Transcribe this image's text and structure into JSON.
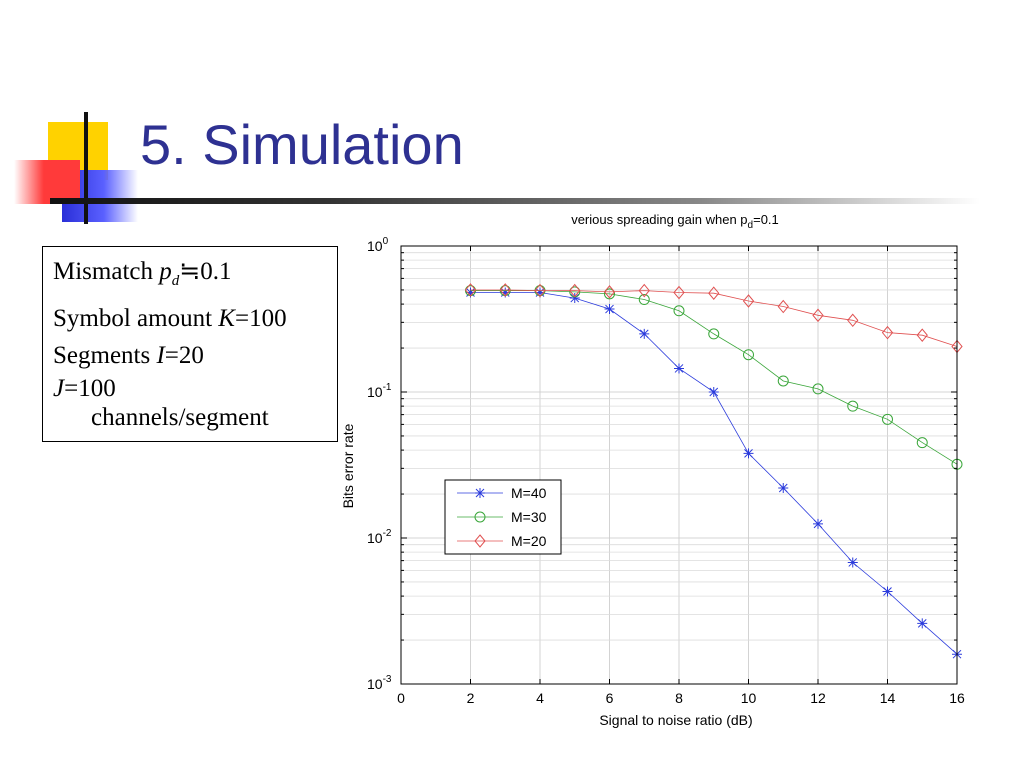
{
  "slide": {
    "title": "5. Simulation"
  },
  "params": {
    "l1_label": "Mismatch ",
    "l1_var": "p",
    "l1_sub": "d",
    "l1_value": "≒0.1",
    "l2_label": "Symbol amount ",
    "l2_var": "K",
    "l2_value": "=100",
    "l3_label": "Segments ",
    "l3_var": "I",
    "l3_value": "=20",
    "l4_var": "J",
    "l4_value": "=100",
    "l5_text": "channels/segment"
  },
  "colors": {
    "title": "#2e3192",
    "deco_yellow": "#ffd200",
    "deco_blue": "#3a3fe0",
    "deco_red": "#ff3b3b",
    "m40": "#2b3bdc",
    "m30": "#3aa63a",
    "m20": "#e05050"
  },
  "chart_data": {
    "type": "line",
    "title_main": "verious spreading gain when p",
    "title_sub": "d",
    "title_tail": "=0.1",
    "xlabel": "Signal to noise ratio (dB)",
    "ylabel": "Bits error rate",
    "xlim": [
      0,
      16
    ],
    "ylim": [
      0.001,
      1
    ],
    "yscale": "log",
    "grid": true,
    "legend_position": "lower-left",
    "x_ticks": [
      0,
      2,
      4,
      6,
      8,
      10,
      12,
      14,
      16
    ],
    "y_ticks": [
      {
        "base": "10",
        "exp": "0",
        "value": 1
      },
      {
        "base": "10",
        "exp": "-1",
        "value": 0.1
      },
      {
        "base": "10",
        "exp": "-2",
        "value": 0.01
      },
      {
        "base": "10",
        "exp": "-3",
        "value": 0.001
      }
    ],
    "series": [
      {
        "name": "M=40",
        "marker": "star",
        "color": "#2b3bdc",
        "x": [
          2,
          3,
          4,
          5,
          6,
          7,
          8,
          9,
          10,
          11,
          12,
          13,
          14,
          15,
          16
        ],
        "y": [
          0.48,
          0.48,
          0.48,
          0.44,
          0.37,
          0.25,
          0.145,
          0.1,
          0.038,
          0.022,
          0.0125,
          0.0068,
          0.0043,
          0.0026,
          0.0016
        ]
      },
      {
        "name": "M=30",
        "marker": "circle",
        "color": "#3aa63a",
        "x": [
          2,
          3,
          4,
          5,
          6,
          7,
          8,
          9,
          10,
          11,
          12,
          13,
          14,
          15,
          16
        ],
        "y": [
          0.495,
          0.495,
          0.495,
          0.485,
          0.47,
          0.43,
          0.36,
          0.25,
          0.18,
          0.119,
          0.105,
          0.08,
          0.065,
          0.045,
          0.032
        ]
      },
      {
        "name": "M=20",
        "marker": "diamond",
        "color": "#e05050",
        "x": [
          2,
          3,
          4,
          5,
          6,
          7,
          8,
          9,
          10,
          11,
          12,
          13,
          14,
          15,
          16
        ],
        "y": [
          0.5,
          0.5,
          0.495,
          0.495,
          0.485,
          0.495,
          0.48,
          0.475,
          0.42,
          0.385,
          0.335,
          0.31,
          0.255,
          0.245,
          0.205
        ]
      }
    ]
  }
}
